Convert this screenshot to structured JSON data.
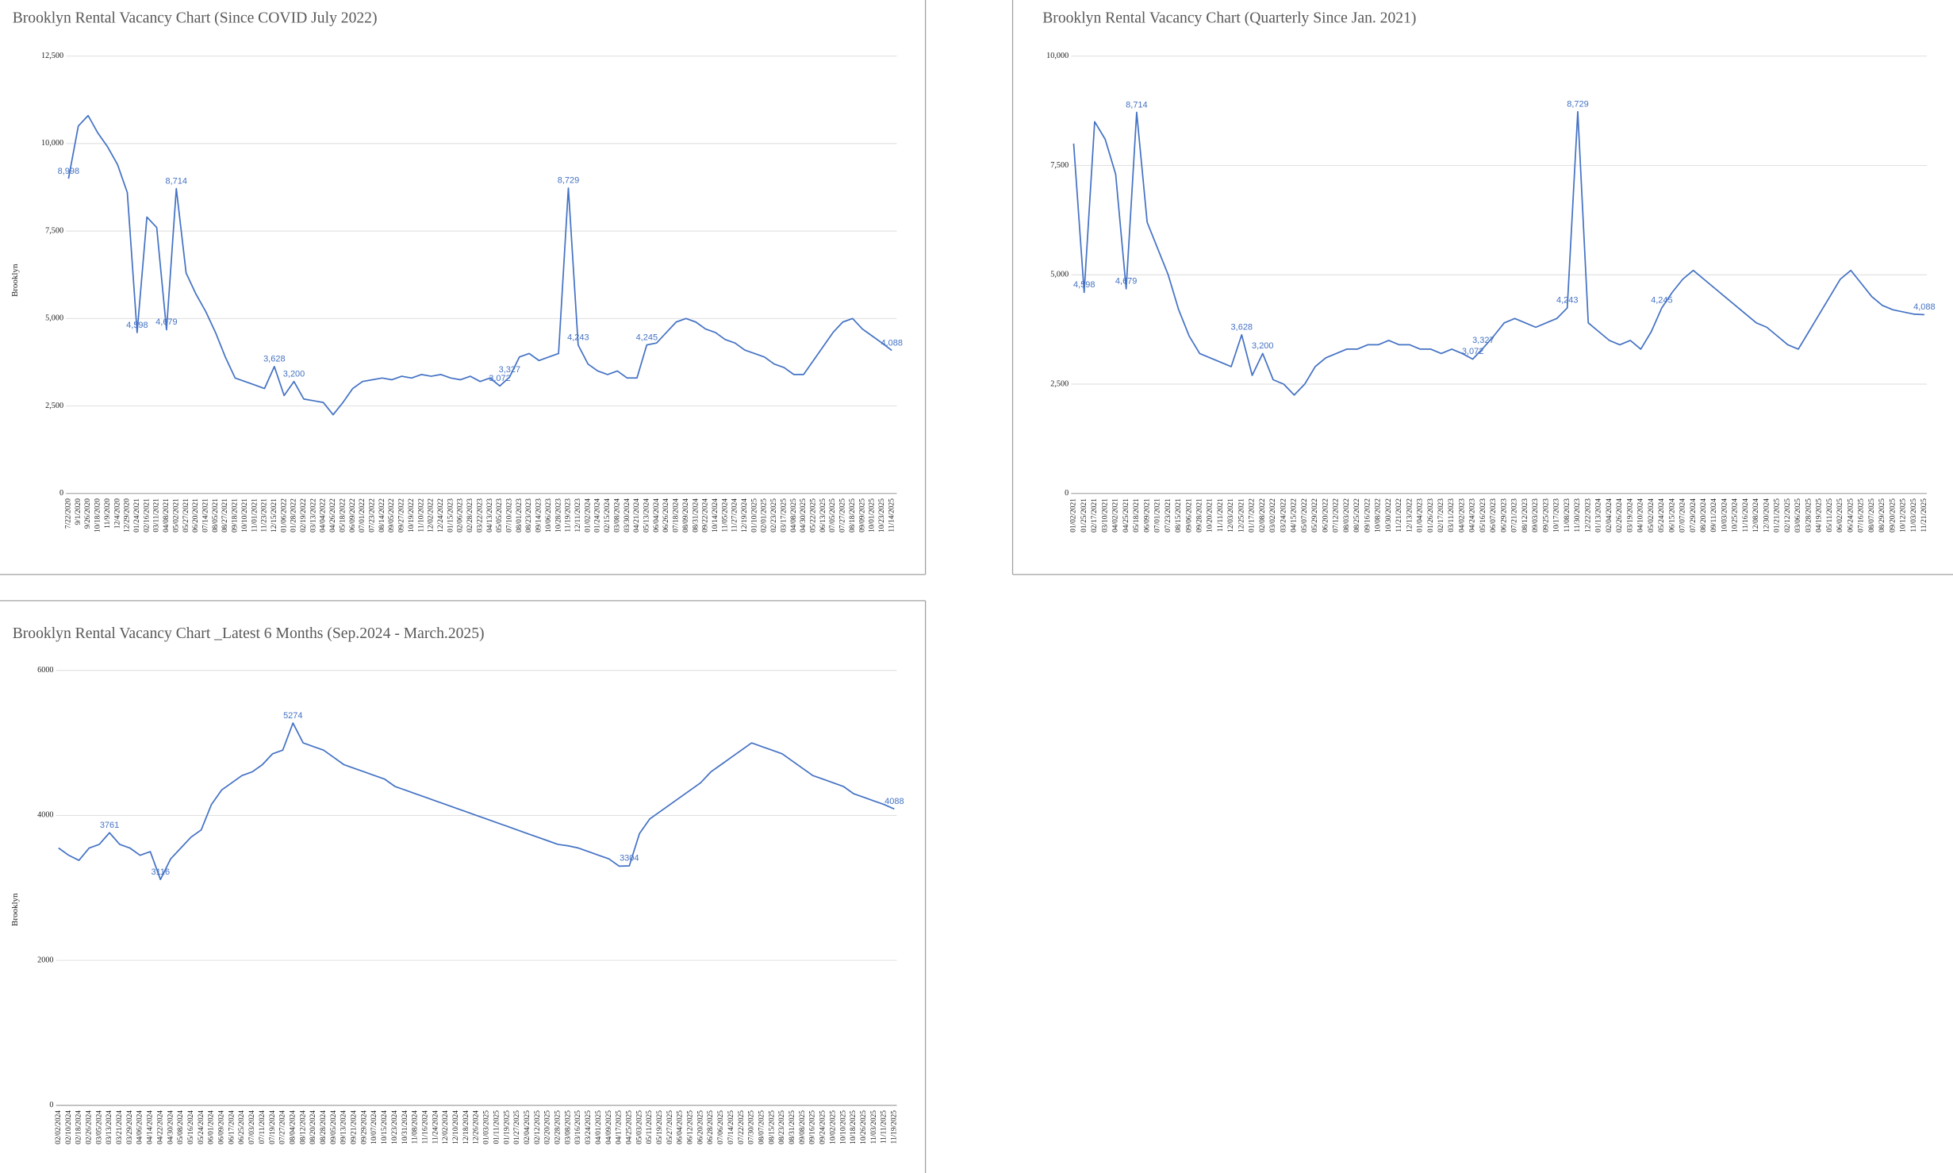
{
  "chart_data": [
    {
      "type": "line",
      "title": "Brooklyn Rental Vacancy Chart (Since COVID July 2022)",
      "y_label": "Brooklyn",
      "color": "#4472c4",
      "grid": true,
      "ylim": [
        0,
        12500
      ],
      "yticks": [
        0,
        {
          "value": 2500,
          "label": "2,500"
        },
        {
          "value": 5000,
          "label": "5,000"
        },
        {
          "value": 7500,
          "label": "7,500"
        },
        {
          "value": 10000,
          "label": "10,000"
        },
        {
          "value": 12500,
          "label": "12,500"
        }
      ],
      "categories": [
        "7/22/2020",
        "9/1/2020",
        "9/26/2020",
        "10/18/2020",
        "11/9/2020",
        "12/4/2020",
        "12/29/2020",
        "01/24/2021",
        "02/16/2021",
        "03/11/2021",
        "04/08/2021",
        "05/02/2021",
        "05/27/2021",
        "06/20/2021",
        "07/14/2021",
        "08/05/2021",
        "08/27/2021",
        "09/18/2021",
        "10/10/2021",
        "11/01/2021",
        "11/23/2021",
        "12/15/2021",
        "01/06/2022",
        "01/28/2022",
        "02/19/2022",
        "03/13/2022",
        "04/04/2022",
        "04/26/2022",
        "05/18/2022",
        "06/09/2022",
        "07/01/2022",
        "07/23/2022",
        "08/14/2022",
        "09/05/2022",
        "09/27/2022",
        "10/19/2022",
        "11/10/2022",
        "12/02/2022",
        "12/24/2022",
        "01/15/2023",
        "02/06/2023",
        "02/28/2023",
        "03/22/2023",
        "04/13/2023",
        "05/05/2023",
        "07/10/2023",
        "08/01/2023",
        "08/23/2023",
        "09/14/2023",
        "10/06/2023",
        "10/28/2023",
        "11/19/2023",
        "12/11/2023",
        "01/02/2024",
        "01/24/2024",
        "02/15/2024",
        "03/08/2024",
        "03/30/2024",
        "04/21/2024",
        "05/13/2024",
        "06/04/2024",
        "06/26/2024",
        "07/18/2024",
        "08/09/2024",
        "08/31/2024",
        "09/22/2024",
        "10/14/2024",
        "11/05/2024",
        "11/27/2024",
        "12/19/2024",
        "01/10/2025",
        "02/01/2025",
        "02/23/2025",
        "03/17/2025",
        "04/08/2025",
        "04/30/2025",
        "05/22/2025",
        "06/13/2025",
        "07/05/2025",
        "07/27/2025",
        "08/18/2025",
        "09/09/2025",
        "10/01/2025",
        "10/23/2025",
        "11/14/2025"
      ],
      "values": [
        8998,
        10500,
        10800,
        10300,
        9900,
        9400,
        8600,
        4598,
        7900,
        7600,
        4679,
        8714,
        6300,
        5700,
        5200,
        4600,
        3900,
        3300,
        3200,
        3100,
        3000,
        3628,
        2800,
        3200,
        2700,
        2650,
        2600,
        2250,
        2600,
        3000,
        3200,
        3250,
        3300,
        3250,
        3350,
        3300,
        3400,
        3350,
        3400,
        3300,
        3250,
        3350,
        3200,
        3300,
        3072,
        3327,
        3900,
        4000,
        3800,
        3900,
        4000,
        8729,
        4243,
        3700,
        3500,
        3400,
        3500,
        3300,
        3300,
        4245,
        4300,
        4600,
        4900,
        5000,
        4900,
        4700,
        4600,
        4400,
        4300,
        4100,
        4000,
        3900,
        3700,
        3600,
        3400,
        3400,
        3800,
        4200,
        4600,
        4900,
        5000,
        4700,
        4500,
        4300,
        4088
      ],
      "value_labels": [
        "8,998",
        null,
        null,
        null,
        null,
        null,
        null,
        "4,598",
        null,
        null,
        "4,679",
        "8,714",
        null,
        null,
        null,
        null,
        null,
        null,
        null,
        null,
        null,
        "3,628",
        null,
        "3,200",
        null,
        null,
        null,
        null,
        null,
        null,
        null,
        null,
        null,
        null,
        null,
        null,
        null,
        null,
        null,
        null,
        null,
        null,
        null,
        null,
        "3,072",
        "3,327",
        null,
        null,
        null,
        null,
        null,
        "8,729",
        "4,243",
        null,
        null,
        null,
        null,
        null,
        null,
        "4,245",
        null,
        null,
        null,
        null,
        null,
        null,
        null,
        null,
        null,
        null,
        null,
        null,
        null,
        null,
        null,
        null,
        null,
        null,
        null,
        null,
        null,
        null,
        null,
        null,
        "4,088"
      ]
    },
    {
      "type": "line",
      "title": "Brooklyn Rental Vacancy Chart (Quarterly Since Jan. 2021)",
      "color": "#4472c4",
      "grid": true,
      "ylim": [
        0,
        10000
      ],
      "yticks": [
        0,
        {
          "value": 2500,
          "label": "2,500"
        },
        {
          "value": 5000,
          "label": "5,000"
        },
        {
          "value": 7500,
          "label": "7,500"
        },
        {
          "value": 10000,
          "label": "10,000"
        }
      ],
      "categories": [
        "01/02/2021",
        "01/25/2021",
        "02/17/2021",
        "03/10/2021",
        "04/02/2021",
        "04/25/2021",
        "05/18/2021",
        "06/09/2021",
        "07/01/2021",
        "07/23/2021",
        "08/15/2021",
        "09/06/2021",
        "09/28/2021",
        "10/20/2021",
        "11/11/2021",
        "12/03/2021",
        "12/25/2021",
        "01/17/2022",
        "02/08/2022",
        "03/02/2022",
        "03/24/2022",
        "04/15/2022",
        "05/07/2022",
        "05/29/2022",
        "06/20/2022",
        "07/12/2022",
        "08/03/2022",
        "08/25/2022",
        "09/16/2022",
        "10/08/2022",
        "10/30/2022",
        "11/21/2022",
        "12/13/2022",
        "01/04/2023",
        "01/26/2023",
        "02/17/2023",
        "03/11/2023",
        "04/02/2023",
        "04/24/2023",
        "05/16/2023",
        "06/07/2023",
        "06/29/2023",
        "07/21/2023",
        "08/12/2023",
        "09/03/2023",
        "09/25/2023",
        "10/17/2023",
        "11/08/2023",
        "11/30/2023",
        "12/22/2023",
        "01/13/2024",
        "02/04/2024",
        "02/26/2024",
        "03/19/2024",
        "04/10/2024",
        "05/02/2024",
        "05/24/2024",
        "06/15/2024",
        "07/07/2024",
        "07/29/2024",
        "08/20/2024",
        "09/11/2024",
        "10/03/2024",
        "10/25/2024",
        "11/16/2024",
        "12/08/2024",
        "12/30/2024",
        "01/21/2025",
        "02/12/2025",
        "03/06/2025",
        "03/28/2025",
        "04/19/2025",
        "05/11/2025",
        "06/02/2025",
        "06/24/2025",
        "07/16/2025",
        "08/07/2025",
        "08/29/2025",
        "09/20/2025",
        "10/12/2025",
        "11/03/2025",
        "11/21/2025"
      ],
      "values": [
        8000,
        4598,
        8500,
        8100,
        7300,
        4679,
        8714,
        6200,
        5600,
        5000,
        4200,
        3600,
        3200,
        3100,
        3000,
        2900,
        3628,
        2700,
        3200,
        2600,
        2500,
        2250,
        2500,
        2900,
        3100,
        3200,
        3300,
        3300,
        3400,
        3400,
        3500,
        3400,
        3400,
        3300,
        3300,
        3200,
        3300,
        3200,
        3072,
        3327,
        3600,
        3900,
        4000,
        3900,
        3800,
        3900,
        4000,
        4243,
        8729,
        3900,
        3700,
        3500,
        3400,
        3500,
        3300,
        3700,
        4245,
        4600,
        4900,
        5100,
        4900,
        4700,
        4500,
        4300,
        4100,
        3900,
        3800,
        3600,
        3400,
        3300,
        3700,
        4100,
        4500,
        4900,
        5100,
        4800,
        4500,
        4300,
        4200,
        4150,
        4100,
        4088
      ],
      "value_labels": [
        null,
        "4,598",
        null,
        null,
        null,
        "4,679",
        "8,714",
        null,
        null,
        null,
        null,
        null,
        null,
        null,
        null,
        null,
        "3,628",
        null,
        "3,200",
        null,
        null,
        null,
        null,
        null,
        null,
        null,
        null,
        null,
        null,
        null,
        null,
        null,
        null,
        null,
        null,
        null,
        null,
        null,
        "3,072",
        "3,327",
        null,
        null,
        null,
        null,
        null,
        null,
        null,
        "4,243",
        "8,729",
        null,
        null,
        null,
        null,
        null,
        null,
        null,
        "4,245",
        null,
        null,
        null,
        null,
        null,
        null,
        null,
        null,
        null,
        null,
        null,
        null,
        null,
        null,
        null,
        null,
        null,
        null,
        null,
        null,
        null,
        null,
        null,
        null,
        "4,088"
      ]
    },
    {
      "type": "line",
      "title": "Brooklyn Rental Vacancy Chart _Latest 6 Months (Sep.2024 - March.2025)",
      "y_label": "Brooklyn",
      "color": "#4472c4",
      "grid": true,
      "ylim": [
        0,
        6000
      ],
      "yticks": [
        0,
        2000,
        4000,
        6000
      ],
      "categories": [
        "02/02/2024",
        "02/10/2024",
        "02/18/2024",
        "02/26/2024",
        "03/05/2024",
        "03/13/2024",
        "03/21/2024",
        "03/29/2024",
        "04/06/2024",
        "04/14/2024",
        "04/22/2024",
        "04/30/2024",
        "05/08/2024",
        "05/16/2024",
        "05/24/2024",
        "06/01/2024",
        "06/09/2024",
        "06/17/2024",
        "06/25/2024",
        "07/03/2024",
        "07/11/2024",
        "07/19/2024",
        "07/27/2024",
        "08/04/2024",
        "08/12/2024",
        "08/20/2024",
        "08/28/2024",
        "09/05/2024",
        "09/13/2024",
        "09/21/2024",
        "09/29/2024",
        "10/07/2024",
        "10/15/2024",
        "10/23/2024",
        "10/31/2024",
        "11/08/2024",
        "11/16/2024",
        "11/24/2024",
        "12/02/2024",
        "12/10/2024",
        "12/18/2024",
        "12/26/2024",
        "01/03/2025",
        "01/11/2025",
        "01/19/2025",
        "01/27/2025",
        "02/04/2025",
        "02/12/2025",
        "02/20/2025",
        "02/28/2025",
        "03/08/2025",
        "03/16/2025",
        "03/24/2025",
        "04/01/2025",
        "04/09/2025",
        "04/17/2025",
        "04/25/2025",
        "05/03/2025",
        "05/11/2025",
        "05/19/2025",
        "05/27/2025",
        "06/04/2025",
        "06/12/2025",
        "06/20/2025",
        "06/28/2025",
        "07/06/2025",
        "07/14/2025",
        "07/22/2025",
        "07/30/2025",
        "08/07/2025",
        "08/15/2025",
        "08/23/2025",
        "08/31/2025",
        "09/08/2025",
        "09/16/2025",
        "09/24/2025",
        "10/02/2025",
        "10/10/2025",
        "10/18/2025",
        "10/26/2025",
        "11/03/2025",
        "11/11/2025",
        "11/19/2025"
      ],
      "values": [
        3550,
        3450,
        3380,
        3550,
        3600,
        3761,
        3600,
        3550,
        3450,
        3500,
        3116,
        3400,
        3550,
        3700,
        3800,
        4150,
        4350,
        4450,
        4550,
        4600,
        4700,
        4850,
        4900,
        5274,
        5000,
        4950,
        4900,
        4800,
        4700,
        4650,
        4600,
        4550,
        4500,
        4400,
        4350,
        4300,
        4250,
        4200,
        4150,
        4100,
        4050,
        4000,
        3950,
        3900,
        3850,
        3800,
        3750,
        3700,
        3650,
        3600,
        3580,
        3550,
        3500,
        3450,
        3400,
        3300,
        3304,
        3750,
        3950,
        4050,
        4150,
        4250,
        4350,
        4450,
        4600,
        4700,
        4800,
        4900,
        5000,
        4950,
        4900,
        4850,
        4750,
        4650,
        4550,
        4500,
        4450,
        4400,
        4300,
        4250,
        4200,
        4150,
        4088
      ],
      "value_labels": [
        null,
        null,
        null,
        null,
        null,
        "3761",
        null,
        null,
        null,
        null,
        "3116",
        null,
        null,
        null,
        null,
        null,
        null,
        null,
        null,
        null,
        null,
        null,
        null,
        "5274",
        null,
        null,
        null,
        null,
        null,
        null,
        null,
        null,
        null,
        null,
        null,
        null,
        null,
        null,
        null,
        null,
        null,
        null,
        null,
        null,
        null,
        null,
        null,
        null,
        null,
        null,
        null,
        null,
        null,
        null,
        null,
        null,
        "3304",
        null,
        null,
        null,
        null,
        null,
        null,
        null,
        null,
        null,
        null,
        null,
        null,
        null,
        null,
        null,
        null,
        null,
        null,
        null,
        null,
        null,
        null,
        null,
        null,
        null,
        "4088"
      ]
    }
  ]
}
